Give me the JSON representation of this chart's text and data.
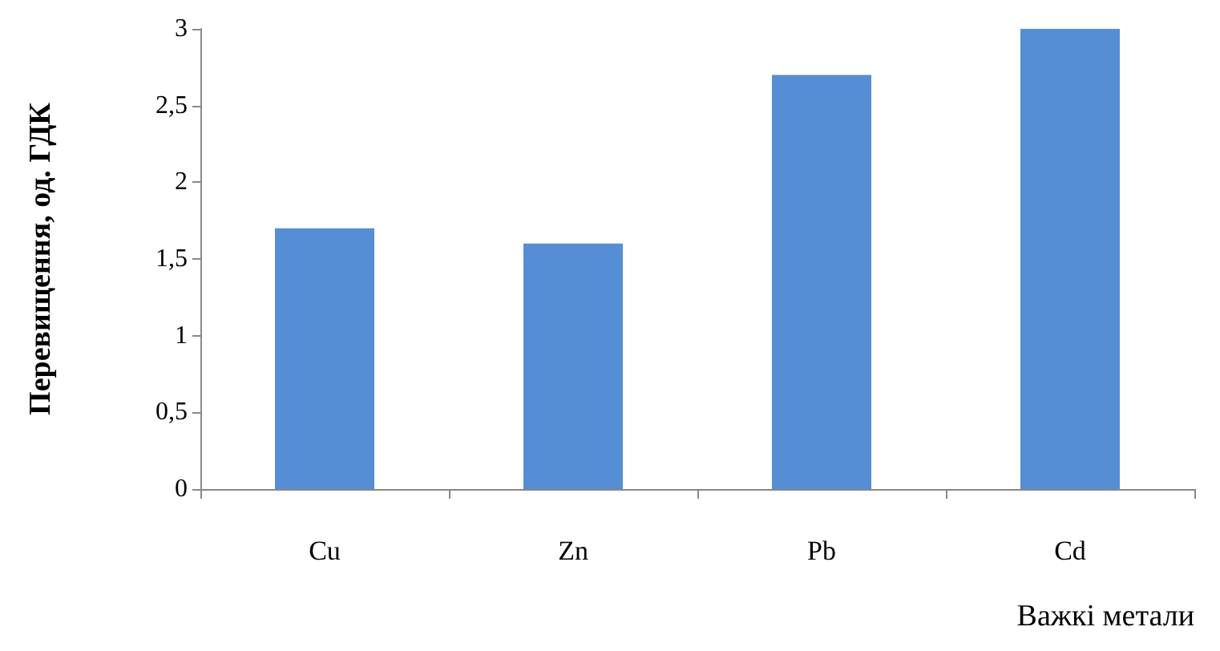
{
  "chart_data": {
    "type": "bar",
    "xlabel": "Важкі метали",
    "ylabel": "Перевищення, од. ГДК",
    "categories": [
      "Cu",
      "Zn",
      "Pb",
      "Cd"
    ],
    "values": [
      1.7,
      1.6,
      2.7,
      3.0
    ],
    "color": "#558ed5",
    "ylim": [
      0,
      3
    ],
    "yticks": [
      0,
      {
        "value": 0.5,
        "label": "0,5"
      },
      1,
      {
        "value": 1.5,
        "label": "1,5"
      },
      2,
      {
        "value": 2.5,
        "label": "2,5"
      },
      3
    ],
    "grid": false
  }
}
